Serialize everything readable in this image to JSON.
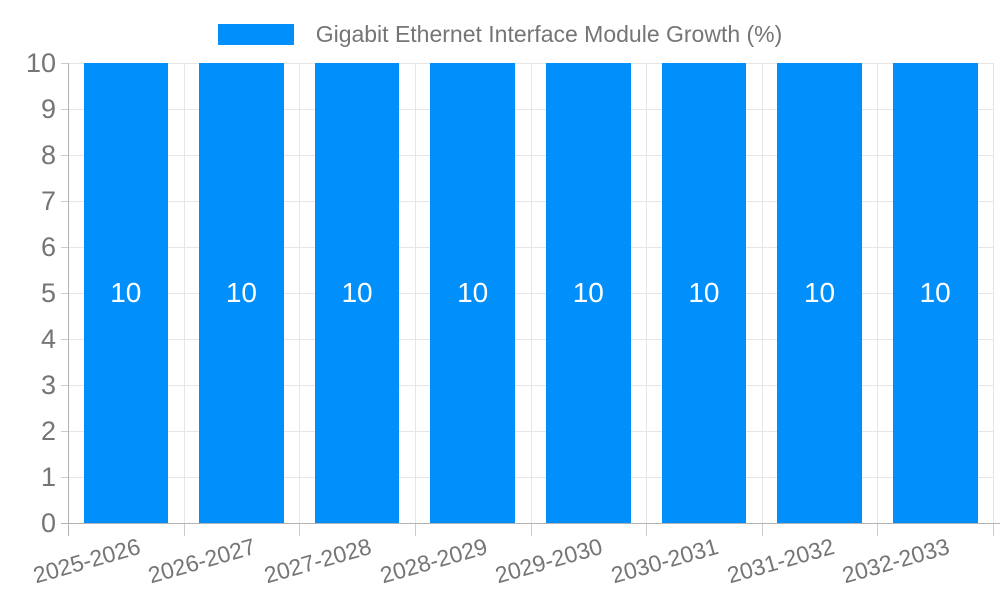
{
  "legend": {
    "label": "Gigabit Ethernet Interface Module Growth (%)",
    "swatch_color": "#008FFB"
  },
  "chart_data": {
    "type": "bar",
    "title": "Gigabit Ethernet Interface Module Growth (%)",
    "categories": [
      "2025-2026",
      "2026-2027",
      "2027-2028",
      "2028-2029",
      "2029-2030",
      "2030-2031",
      "2031-2032",
      "2032-2033"
    ],
    "series": [
      {
        "name": "Gigabit Ethernet Interface Module Growth (%)",
        "values": [
          10,
          10,
          10,
          10,
          10,
          10,
          10,
          10
        ]
      }
    ],
    "value_labels": [
      "10",
      "10",
      "10",
      "10",
      "10",
      "10",
      "10",
      "10"
    ],
    "xlabel": "",
    "ylabel": "",
    "ylim": [
      0,
      10
    ],
    "y_ticks": [
      0,
      1,
      2,
      3,
      4,
      5,
      6,
      7,
      8,
      9,
      10
    ],
    "grid": true,
    "legend_position": "top-center",
    "x_label_rotation_deg": -16,
    "bar_color": "#008FFB",
    "value_label_color": "#FFFFFF",
    "axis_label_color": "#757575",
    "axis_line_color": "#B3B3B3",
    "grid_color": "#E6E6E6",
    "tick_color": "#CCCCCC",
    "background_color": "#FFFFFF"
  }
}
